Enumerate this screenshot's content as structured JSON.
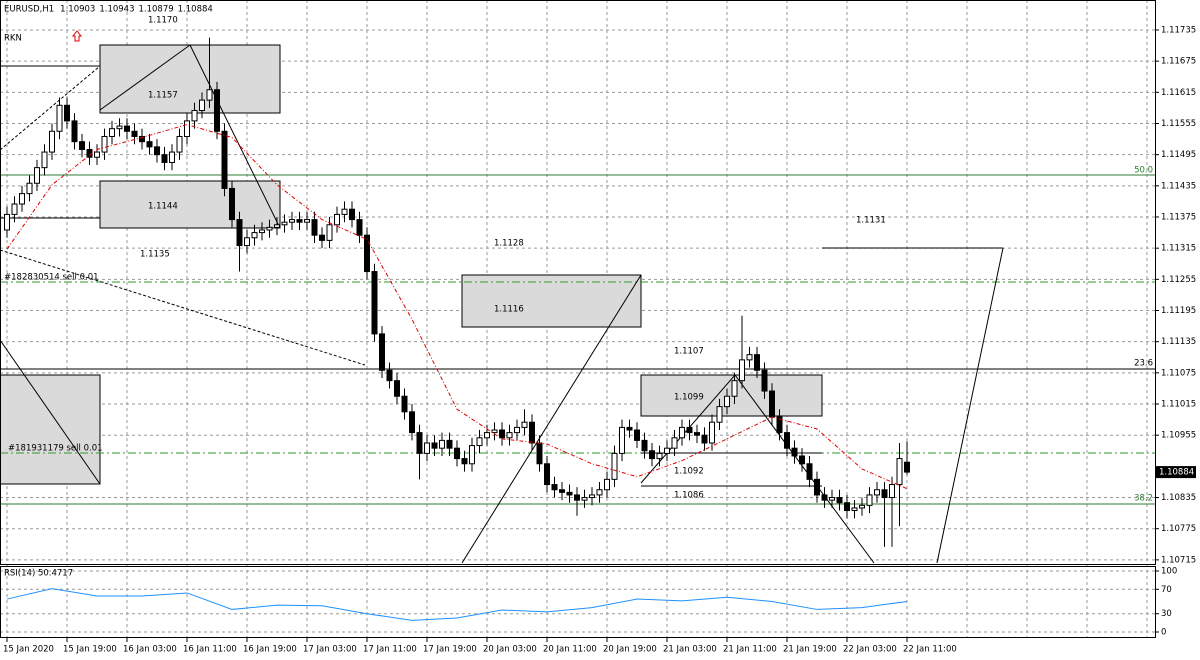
{
  "chart_data": [
    {
      "type": "candlestick",
      "symbol": "EURUSD,H1",
      "indicator_label": "RKN",
      "categories": [
        "15 Jan 2020",
        null,
        null,
        null,
        null,
        null,
        null,
        null,
        "15 Jan 19:00",
        null,
        null,
        null,
        null,
        null,
        null,
        null,
        "16 Jan 03:00",
        null,
        null,
        null,
        null,
        null,
        null,
        null,
        "16 Jan 11:00",
        null,
        null,
        null,
        null,
        null,
        null,
        null,
        "16 Jan 19:00",
        null,
        null,
        null,
        null,
        null,
        null,
        null,
        "17 Jan 03:00",
        null,
        null,
        null,
        null,
        null,
        null,
        null,
        "17 Jan 11:00",
        null,
        null,
        null,
        null,
        null,
        null,
        null,
        "17 Jan 19:00",
        null,
        null,
        null,
        null,
        null,
        null,
        null,
        "20 Jan 03:00",
        null,
        null,
        null,
        null,
        null,
        null,
        null,
        "20 Jan 11:00",
        null,
        null,
        null,
        null,
        null,
        null,
        null,
        "20 Jan 19:00",
        null,
        null,
        null,
        null,
        null,
        null,
        null,
        "21 Jan 03:00",
        null,
        null,
        null,
        null,
        null,
        null,
        null,
        "21 Jan 11:00",
        null,
        null,
        null,
        null,
        null,
        null,
        null,
        "21 Jan 19:00",
        null,
        null,
        null,
        null,
        null,
        null,
        null,
        "22 Jan 03:00",
        null,
        null,
        null,
        null,
        null,
        null,
        null,
        "22 Jan 11:00"
      ],
      "open": [
        1.1135,
        1.1138,
        1.114,
        1.1142,
        1.1144,
        1.1147,
        1.115,
        1.1154,
        1.1159,
        1.1156,
        1.1152,
        1.11505,
        1.1149,
        1.115,
        1.1153,
        1.11545,
        1.1155,
        1.1154,
        1.1153,
        1.1152,
        1.1151,
        1.11495,
        1.1148,
        1.115,
        1.1153,
        1.1156,
        1.1158,
        1.116,
        1.1162,
        1.1154,
        1.1143,
        1.1137,
        1.1132,
        1.11335,
        1.11345,
        1.1135,
        1.11355,
        1.1136,
        1.11365,
        1.1137,
        1.11365,
        1.1137,
        1.1134,
        1.1133,
        1.1136,
        1.1138,
        1.1139,
        1.1137,
        1.1134,
        1.1127,
        1.1115,
        1.1108,
        1.1106,
        1.1103,
        1.11,
        1.1096,
        1.1092,
        1.1094,
        1.1093,
        1.10945,
        1.1093,
        1.1091,
        1.109,
        1.10935,
        1.1095,
        1.1096,
        1.10965,
        1.1095,
        1.1096,
        1.1097,
        1.1098,
        1.1094,
        1.109,
        1.1086,
        1.1085,
        1.10845,
        1.1084,
        1.1083,
        1.10835,
        1.1084,
        1.1085,
        1.1087,
        1.1092,
        1.1097,
        1.10965,
        1.10945,
        1.10925,
        1.1091,
        1.1092,
        1.1093,
        1.1095,
        1.1097,
        1.1096,
        1.10955,
        1.1094,
        1.1098,
        1.1101,
        1.1103,
        1.1106,
        1.111,
        1.1111,
        1.1108,
        1.1104,
        1.1099,
        1.1096,
        1.1093,
        1.10915,
        1.109,
        1.1087,
        1.1084,
        1.1083,
        1.10835,
        1.10825,
        1.1081,
        1.10815,
        1.1082,
        1.1084,
        1.1085,
        1.10835,
        1.1086,
        1.10903
      ],
      "high": [
        1.11395,
        1.11415,
        1.11435,
        1.11455,
        1.11485,
        1.11515,
        1.11555,
        1.11605,
        1.11605,
        1.11575,
        1.11535,
        1.1152,
        1.11515,
        1.11545,
        1.1156,
        1.11565,
        1.11565,
        1.11555,
        1.11545,
        1.11535,
        1.11525,
        1.1151,
        1.11515,
        1.11545,
        1.11575,
        1.11595,
        1.11615,
        1.1172,
        1.11635,
        1.11555,
        1.11445,
        1.11385,
        1.1135,
        1.1136,
        1.11365,
        1.1137,
        1.11375,
        1.1138,
        1.11385,
        1.11385,
        1.11385,
        1.11385,
        1.11355,
        1.11375,
        1.11395,
        1.11405,
        1.11405,
        1.11385,
        1.11355,
        1.11285,
        1.11165,
        1.11095,
        1.11075,
        1.11045,
        1.11015,
        1.10975,
        1.10955,
        1.10955,
        1.1096,
        1.1096,
        1.10945,
        1.10925,
        1.1095,
        1.10965,
        1.10975,
        1.1098,
        1.1098,
        1.10975,
        1.10985,
        1.11005,
        1.10995,
        1.10955,
        1.10915,
        1.10875,
        1.10865,
        1.1086,
        1.10855,
        1.1085,
        1.10855,
        1.10865,
        1.10885,
        1.10935,
        1.10985,
        1.10985,
        1.1098,
        1.1096,
        1.1094,
        1.10935,
        1.10945,
        1.10965,
        1.10985,
        1.10985,
        1.10975,
        1.1097,
        1.10995,
        1.11025,
        1.11045,
        1.11075,
        1.11185,
        1.11125,
        1.11125,
        1.11095,
        1.11055,
        1.11005,
        1.10975,
        1.10945,
        1.1093,
        1.10915,
        1.10885,
        1.10855,
        1.1085,
        1.1085,
        1.1084,
        1.1083,
        1.10835,
        1.10855,
        1.10865,
        1.10865,
        1.10875,
        1.1094,
        1.10943
      ],
      "low": [
        1.11335,
        1.11365,
        1.11385,
        1.11405,
        1.11425,
        1.11455,
        1.11485,
        1.11525,
        1.11545,
        1.11505,
        1.1149,
        1.11475,
        1.11475,
        1.11485,
        1.11515,
        1.1153,
        1.11525,
        1.11515,
        1.11505,
        1.11495,
        1.1148,
        1.11465,
        1.11465,
        1.11485,
        1.11515,
        1.11545,
        1.11565,
        1.11585,
        1.11525,
        1.11415,
        1.11355,
        1.1127,
        1.11305,
        1.1132,
        1.1133,
        1.11335,
        1.1134,
        1.11345,
        1.1135,
        1.1135,
        1.1135,
        1.11325,
        1.11315,
        1.11315,
        1.11345,
        1.11365,
        1.11355,
        1.11325,
        1.11255,
        1.11135,
        1.11065,
        1.11045,
        1.11015,
        1.10985,
        1.10945,
        1.1087,
        1.10905,
        1.10915,
        1.10915,
        1.10915,
        1.10895,
        1.10885,
        1.10885,
        1.1092,
        1.10935,
        1.10945,
        1.10935,
        1.10935,
        1.10945,
        1.10955,
        1.10925,
        1.10885,
        1.10845,
        1.10835,
        1.1083,
        1.10825,
        1.108,
        1.10815,
        1.1082,
        1.10825,
        1.10835,
        1.10855,
        1.10905,
        1.1095,
        1.1093,
        1.1091,
        1.10895,
        1.10895,
        1.10905,
        1.10915,
        1.10935,
        1.10945,
        1.1094,
        1.10925,
        1.10925,
        1.10965,
        1.10995,
        1.11015,
        1.11045,
        1.11085,
        1.11065,
        1.11025,
        1.10975,
        1.10945,
        1.10915,
        1.109,
        1.10885,
        1.10855,
        1.10825,
        1.10815,
        1.10815,
        1.1081,
        1.10795,
        1.10795,
        1.108,
        1.10805,
        1.10825,
        1.1074,
        1.1074,
        1.1078,
        1.10879
      ],
      "close": [
        1.1138,
        1.114,
        1.1142,
        1.1144,
        1.1147,
        1.115,
        1.1154,
        1.1159,
        1.1156,
        1.1152,
        1.11505,
        1.1149,
        1.115,
        1.1153,
        1.11545,
        1.1155,
        1.1154,
        1.1153,
        1.1152,
        1.1151,
        1.11495,
        1.1148,
        1.115,
        1.1153,
        1.1156,
        1.1158,
        1.116,
        1.1162,
        1.1154,
        1.1143,
        1.1137,
        1.1132,
        1.11335,
        1.11345,
        1.1135,
        1.11355,
        1.1136,
        1.11365,
        1.1137,
        1.11365,
        1.1137,
        1.1134,
        1.1133,
        1.1136,
        1.1138,
        1.1139,
        1.1137,
        1.1134,
        1.1127,
        1.1115,
        1.1108,
        1.1106,
        1.1103,
        1.11,
        1.1096,
        1.1092,
        1.1094,
        1.1093,
        1.10945,
        1.1093,
        1.1091,
        1.109,
        1.10935,
        1.1095,
        1.1096,
        1.10965,
        1.1095,
        1.1096,
        1.1097,
        1.1098,
        1.1094,
        1.109,
        1.1086,
        1.1085,
        1.10845,
        1.1084,
        1.1083,
        1.10835,
        1.1084,
        1.1085,
        1.1087,
        1.1092,
        1.1097,
        1.10965,
        1.10945,
        1.10925,
        1.1091,
        1.1092,
        1.1093,
        1.1095,
        1.1097,
        1.1096,
        1.10955,
        1.1094,
        1.1098,
        1.1101,
        1.1103,
        1.1106,
        1.111,
        1.1111,
        1.1108,
        1.1104,
        1.1099,
        1.1096,
        1.1093,
        1.10915,
        1.109,
        1.1087,
        1.1084,
        1.1083,
        1.10835,
        1.10825,
        1.1081,
        1.10815,
        1.1082,
        1.1084,
        1.1085,
        1.10835,
        1.1086,
        1.1091,
        1.10884
      ],
      "overlay": {
        "x": [
          0,
          6,
          12,
          18,
          24,
          30,
          36,
          42,
          48,
          54,
          60,
          66,
          72,
          78,
          84,
          90,
          96,
          102,
          108,
          114,
          120
        ],
        "values": [
          1.11313,
          1.11437,
          1.11505,
          1.11528,
          1.11553,
          1.11528,
          1.11437,
          1.1137,
          1.11332,
          1.11178,
          1.11005,
          1.10948,
          1.10938,
          1.109,
          1.10875,
          1.10906,
          1.10948,
          1.1099,
          1.10967,
          1.1089,
          1.10852
        ],
        "color": "#e00000"
      },
      "ylim": [
        1.10709,
        1.11785
      ],
      "yticks": [
        1.11735,
        1.11675,
        1.11615,
        1.11555,
        1.11495,
        1.11435,
        1.11375,
        1.11315,
        1.11255,
        1.11195,
        1.11135,
        1.11075,
        1.11015,
        1.10955,
        1.10835,
        1.10775,
        1.10715
      ],
      "grid": true,
      "annotations": [
        "1.1170",
        "1.1157",
        "1.1144",
        "1.1135",
        "1.1128",
        "1.1116",
        "1.1107",
        "1.1099",
        "1.1092",
        "1.1086",
        "1.1131",
        "#182830514 sell 0.01",
        "#181931179 sell 0.01",
        "50.0",
        "23.6",
        "38.2"
      ]
    },
    {
      "type": "line",
      "title": "RSI(14) 50.4717",
      "x": [
        0,
        6,
        12,
        18,
        24,
        30,
        36,
        42,
        48,
        54,
        60,
        66,
        72,
        78,
        84,
        90,
        96,
        102,
        108,
        114,
        120
      ],
      "values": [
        54,
        71,
        59,
        59,
        64,
        37,
        44,
        43,
        30,
        19,
        23,
        36,
        33,
        40,
        54,
        51,
        57,
        50,
        37,
        40,
        50
      ],
      "color": "#1e90ff",
      "ylim": [
        0,
        100
      ],
      "yticks": [
        100,
        70,
        30,
        0
      ]
    }
  ]
}
